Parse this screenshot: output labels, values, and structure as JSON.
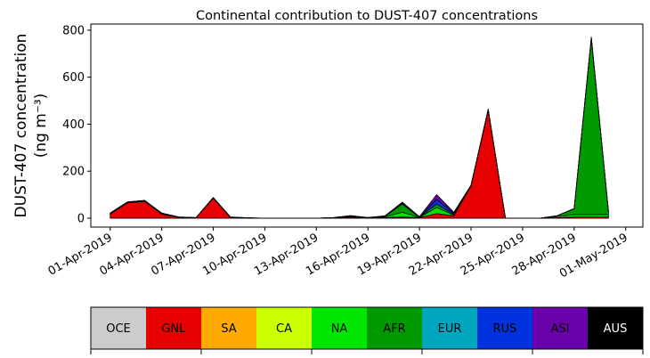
{
  "chart_data": {
    "type": "stacked-area",
    "title": "Continental contribution to DUST-407 concentrations",
    "ylabel": [
      "DUST-407 concentration",
      "(ng m⁻³)"
    ],
    "x": [
      "2019-04-01",
      "2019-04-02",
      "2019-04-03",
      "2019-04-04",
      "2019-04-05",
      "2019-04-06",
      "2019-04-07",
      "2019-04-08",
      "2019-04-09",
      "2019-04-10",
      "2019-04-11",
      "2019-04-12",
      "2019-04-13",
      "2019-04-14",
      "2019-04-15",
      "2019-04-16",
      "2019-04-17",
      "2019-04-18",
      "2019-04-19",
      "2019-04-20",
      "2019-04-21",
      "2019-04-22",
      "2019-04-23",
      "2019-04-24",
      "2019-04-25",
      "2019-04-26",
      "2019-04-27",
      "2019-04-28",
      "2019-04-29",
      "2019-04-30"
    ],
    "series": [
      {
        "name": "OCE",
        "color": "#cccccc",
        "label_color": "#000000",
        "values": [
          0,
          0,
          0,
          0,
          0,
          0,
          0,
          0,
          0,
          0,
          0,
          0,
          0,
          0,
          0,
          0,
          0,
          0,
          0,
          0,
          0,
          0,
          0,
          0,
          0,
          0,
          0,
          0,
          0,
          0
        ]
      },
      {
        "name": "GNL",
        "color": "#e60000",
        "label_color": "#000000",
        "values": [
          18,
          65,
          72,
          18,
          3,
          2,
          85,
          3,
          1,
          0,
          0,
          0,
          0,
          1,
          5,
          1,
          3,
          5,
          2,
          20,
          10,
          138,
          460,
          0,
          0,
          0,
          2,
          5,
          5,
          5
        ]
      },
      {
        "name": "SA",
        "color": "#ffaa00",
        "label_color": "#000000",
        "values": [
          0,
          0,
          0,
          0,
          0,
          0,
          0,
          0,
          0,
          0,
          0,
          0,
          0,
          0,
          0,
          0,
          0,
          0,
          0,
          0,
          0,
          0,
          0,
          0,
          0,
          0,
          0,
          0,
          0,
          0
        ]
      },
      {
        "name": "CA",
        "color": "#ccff00",
        "label_color": "#000000",
        "values": [
          0,
          0,
          0,
          0,
          0,
          0,
          0,
          0,
          0,
          0,
          0,
          0,
          0,
          0,
          0,
          0,
          0,
          0,
          0,
          0,
          0,
          0,
          0,
          0,
          0,
          0,
          0,
          0,
          0,
          0
        ]
      },
      {
        "name": "NA",
        "color": "#00e600",
        "label_color": "#000000",
        "values": [
          0,
          0,
          0,
          0,
          0,
          0,
          0,
          0,
          0,
          0,
          0,
          0,
          0,
          0,
          2,
          0,
          3,
          20,
          1,
          25,
          3,
          0,
          0,
          0,
          0,
          0,
          5,
          10,
          10,
          10
        ]
      },
      {
        "name": "AFR",
        "color": "#009900",
        "label_color": "#000000",
        "values": [
          0,
          0,
          0,
          0,
          0,
          0,
          2,
          0,
          0,
          0,
          0,
          0,
          0,
          1,
          2,
          1,
          2,
          35,
          1,
          15,
          2,
          1,
          2,
          0,
          0,
          0,
          3,
          25,
          750,
          12
        ]
      },
      {
        "name": "EUR",
        "color": "#00a5c0",
        "label_color": "#000000",
        "values": [
          0,
          0,
          0,
          0,
          0,
          0,
          0,
          0,
          0,
          0,
          0,
          0,
          0,
          0,
          0,
          0,
          0,
          0,
          0,
          0,
          0,
          0,
          0,
          0,
          0,
          0,
          0,
          0,
          0,
          0
        ]
      },
      {
        "name": "RUS",
        "color": "#0033dd",
        "label_color": "#000000",
        "values": [
          2,
          2,
          2,
          2,
          1,
          0,
          0,
          1,
          0,
          0,
          0,
          0,
          0,
          0,
          1,
          0,
          1,
          5,
          1,
          20,
          5,
          1,
          1,
          0,
          0,
          0,
          0,
          0,
          3,
          1
        ]
      },
      {
        "name": "ASI",
        "color": "#6a00aa",
        "label_color": "#000000",
        "values": [
          2,
          2,
          2,
          2,
          1,
          1,
          1,
          1,
          1,
          0,
          0,
          0,
          0,
          1,
          1,
          1,
          1,
          3,
          1,
          20,
          5,
          1,
          1,
          0,
          0,
          0,
          0,
          1,
          3,
          1
        ]
      },
      {
        "name": "AUS",
        "color": "#000000",
        "label_color": "#ffffff",
        "values": [
          0,
          0,
          0,
          0,
          0,
          0,
          0,
          0,
          0,
          0,
          0,
          0,
          0,
          0,
          0,
          0,
          0,
          0,
          0,
          0,
          0,
          0,
          0,
          0,
          0,
          0,
          0,
          0,
          0,
          0
        ]
      }
    ],
    "xlim": [
      "2019-03-30T21:00",
      "2019-05-02T00:00"
    ],
    "xticks": [
      {
        "value": "2019-04-01",
        "label": "01-Apr-2019"
      },
      {
        "value": "2019-04-04",
        "label": "04-Apr-2019"
      },
      {
        "value": "2019-04-07",
        "label": "07-Apr-2019"
      },
      {
        "value": "2019-04-10",
        "label": "10-Apr-2019"
      },
      {
        "value": "2019-04-13",
        "label": "13-Apr-2019"
      },
      {
        "value": "2019-04-16",
        "label": "16-Apr-2019"
      },
      {
        "value": "2019-04-19",
        "label": "19-Apr-2019"
      },
      {
        "value": "2019-04-22",
        "label": "22-Apr-2019"
      },
      {
        "value": "2019-04-25",
        "label": "25-Apr-2019"
      },
      {
        "value": "2019-04-28",
        "label": "28-Apr-2019"
      },
      {
        "value": "2019-05-01",
        "label": "01-May-2019"
      }
    ],
    "ylim": [
      -38,
      826
    ],
    "yticks": [
      0,
      200,
      400,
      600,
      800
    ],
    "grid": false,
    "outline_color": "#000000"
  }
}
